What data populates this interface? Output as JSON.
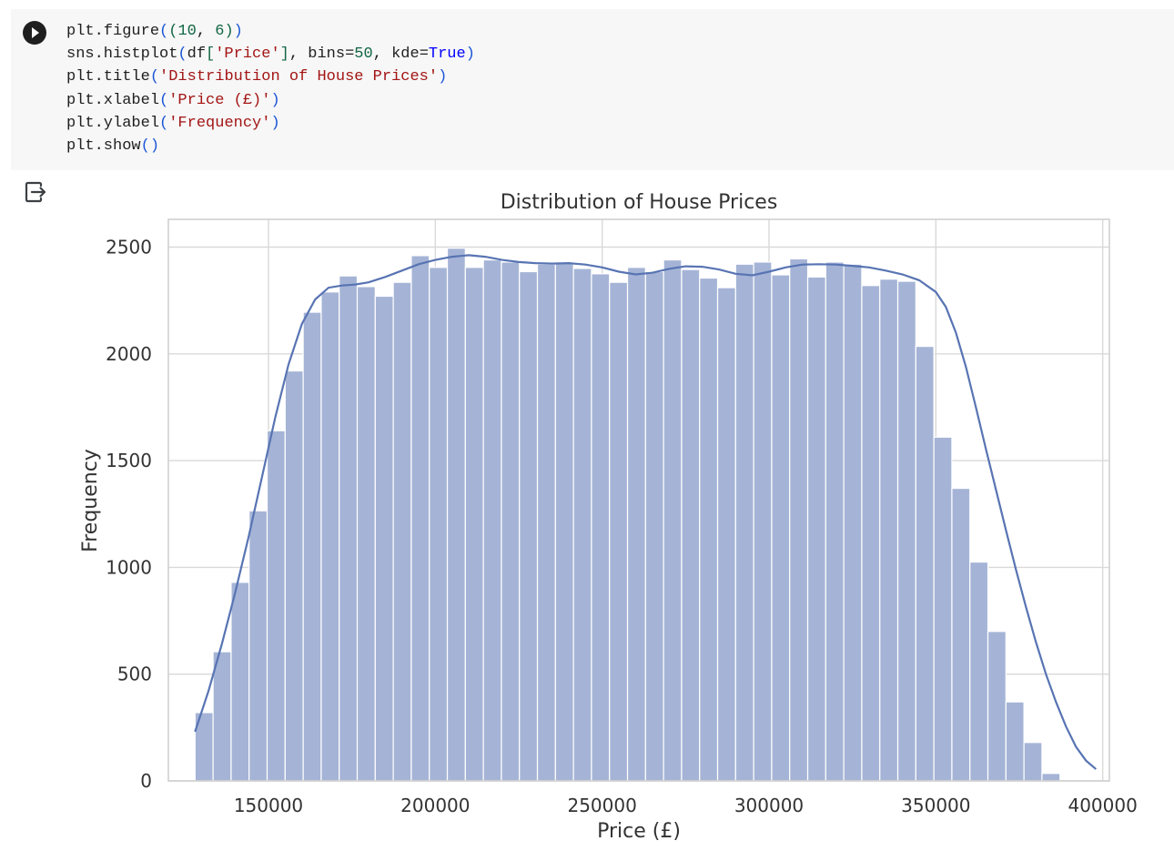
{
  "code_cell": {
    "lines": [
      [
        [
          "plt.figure",
          ""
        ],
        [
          "(",
          "br"
        ],
        [
          "(",
          "num"
        ],
        [
          "10",
          "num"
        ],
        [
          ", ",
          ""
        ],
        [
          "6",
          "num"
        ],
        [
          ")",
          "num"
        ],
        [
          ")",
          "br"
        ]
      ],
      [
        [
          "sns.histplot",
          ""
        ],
        [
          "(",
          "br"
        ],
        [
          "df",
          ""
        ],
        [
          "[",
          "num"
        ],
        [
          "'Price'",
          "str"
        ],
        [
          "]",
          "num"
        ],
        [
          ", bins=",
          ""
        ],
        [
          "50",
          "num"
        ],
        [
          ", kde=",
          ""
        ],
        [
          "True",
          "kw"
        ],
        [
          ")",
          "br"
        ]
      ],
      [
        [
          "plt.title",
          ""
        ],
        [
          "(",
          "br"
        ],
        [
          "'Distribution of House Prices'",
          "str"
        ],
        [
          ")",
          "br"
        ]
      ],
      [
        [
          "plt.xlabel",
          ""
        ],
        [
          "(",
          "br"
        ],
        [
          "'Price (£)'",
          "str"
        ],
        [
          ")",
          "br"
        ]
      ],
      [
        [
          "plt.ylabel",
          ""
        ],
        [
          "(",
          "br"
        ],
        [
          "'Frequency'",
          "str"
        ],
        [
          ")",
          "br"
        ]
      ],
      [
        [
          "plt.show",
          ""
        ],
        [
          "(",
          "br"
        ],
        [
          ")",
          "br"
        ]
      ]
    ]
  },
  "icons": {
    "run": "play-icon",
    "output": "output-redirect-icon"
  },
  "colors": {
    "bar_fill": "#a5b4d6",
    "kde_line": "#5874b3",
    "grid": "#d9d9d9",
    "cell_background": "#f7f7f7"
  },
  "chart_data": {
    "type": "bar",
    "title": "Distribution of House Prices",
    "xlabel": "Price (£)",
    "ylabel": "Frequency",
    "xlim": [
      120000,
      402000
    ],
    "ylim": [
      0,
      2630
    ],
    "xticks": [
      150000,
      200000,
      250000,
      300000,
      350000,
      400000
    ],
    "yticks": [
      0,
      500,
      1000,
      1500,
      2000,
      2500
    ],
    "grid": true,
    "bins": {
      "start": 128000,
      "width": 5400,
      "counts": [
        320,
        605,
        930,
        1265,
        1640,
        1920,
        2195,
        2290,
        2365,
        2315,
        2270,
        2335,
        2460,
        2405,
        2495,
        2405,
        2440,
        2430,
        2385,
        2420,
        2425,
        2400,
        2375,
        2335,
        2405,
        2385,
        2440,
        2395,
        2355,
        2310,
        2420,
        2430,
        2370,
        2445,
        2360,
        2430,
        2420,
        2320,
        2350,
        2340,
        2035,
        1610,
        1370,
        1025,
        700,
        370,
        180,
        35
      ]
    },
    "kde": {
      "x": [
        128000,
        132000,
        136000,
        140000,
        144000,
        148000,
        152000,
        156000,
        160000,
        164000,
        168000,
        172000,
        176000,
        180000,
        185000,
        190000,
        195000,
        200000,
        205000,
        210000,
        215000,
        220000,
        225000,
        230000,
        235000,
        240000,
        245000,
        250000,
        255000,
        260000,
        265000,
        270000,
        275000,
        280000,
        285000,
        290000,
        295000,
        300000,
        305000,
        310000,
        315000,
        320000,
        325000,
        330000,
        335000,
        340000,
        345000,
        350000,
        353000,
        356000,
        359000,
        362000,
        365000,
        368000,
        371000,
        374000,
        377000,
        380000,
        383000,
        386000,
        389000,
        392000,
        395000,
        398000
      ],
      "y": [
        230,
        420,
        640,
        880,
        1140,
        1420,
        1700,
        1950,
        2140,
        2255,
        2310,
        2320,
        2325,
        2335,
        2360,
        2390,
        2420,
        2440,
        2455,
        2462,
        2455,
        2440,
        2430,
        2425,
        2423,
        2425,
        2418,
        2405,
        2385,
        2372,
        2380,
        2398,
        2410,
        2408,
        2395,
        2375,
        2368,
        2385,
        2405,
        2418,
        2420,
        2418,
        2412,
        2405,
        2390,
        2372,
        2345,
        2290,
        2220,
        2100,
        1940,
        1750,
        1555,
        1365,
        1175,
        990,
        815,
        650,
        500,
        370,
        255,
        160,
        95,
        55
      ]
    }
  }
}
